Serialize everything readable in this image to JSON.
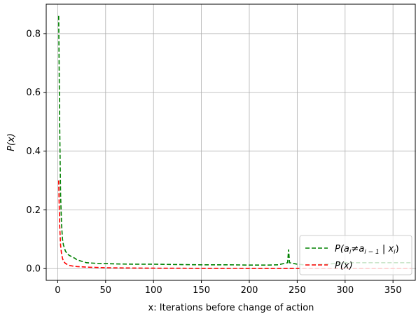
{
  "chart_data": {
    "type": "line",
    "xlabel": "x: Iterations before change of action",
    "ylabel": "P(x)",
    "xlim": [
      -12,
      374
    ],
    "ylim": [
      -0.04,
      0.9
    ],
    "xticks": [
      0,
      50,
      100,
      150,
      200,
      250,
      300,
      350
    ],
    "yticks": [
      0.0,
      0.2,
      0.4,
      0.6,
      0.8
    ],
    "ytick_labels": [
      "0.0",
      "0.2",
      "0.4",
      "0.6",
      "0.8"
    ],
    "grid": true,
    "legend_position": "lower-right",
    "series": [
      {
        "name": "P(a_i≠a_{i−1} | x_i)",
        "color": "#008000",
        "linestyle": "dashed",
        "x": [
          1,
          2,
          3,
          4,
          5,
          6,
          8,
          10,
          12,
          15,
          18,
          20,
          25,
          30,
          40,
          50,
          60,
          80,
          100,
          120,
          150,
          180,
          200,
          220,
          230,
          240,
          241,
          242,
          250,
          260,
          280,
          300,
          320,
          350,
          370
        ],
        "y": [
          0.86,
          0.5,
          0.25,
          0.15,
          0.1,
          0.08,
          0.06,
          0.05,
          0.045,
          0.04,
          0.035,
          0.03,
          0.025,
          0.02,
          0.018,
          0.017,
          0.016,
          0.015,
          0.015,
          0.014,
          0.013,
          0.013,
          0.012,
          0.012,
          0.013,
          0.02,
          0.065,
          0.02,
          0.015,
          0.012,
          0.015,
          0.02,
          0.02,
          0.02,
          0.02
        ]
      },
      {
        "name": "P(x)",
        "color": "#ff0000",
        "linestyle": "dashed",
        "x": [
          1,
          2,
          3,
          4,
          5,
          6,
          8,
          10,
          12,
          15,
          20,
          25,
          30,
          40,
          50,
          60,
          80,
          100,
          150,
          200,
          250,
          300,
          370
        ],
        "y": [
          0.3,
          0.15,
          0.08,
          0.05,
          0.035,
          0.025,
          0.018,
          0.014,
          0.011,
          0.009,
          0.007,
          0.006,
          0.005,
          0.004,
          0.003,
          0.0025,
          0.002,
          0.0015,
          0.001,
          0.0008,
          0.0006,
          0.0005,
          0.0004
        ]
      }
    ]
  }
}
